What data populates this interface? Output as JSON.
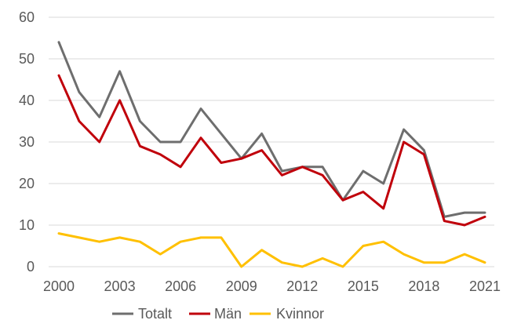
{
  "chart_data": {
    "type": "line",
    "title": "",
    "xlabel": "",
    "ylabel": "",
    "x": [
      2000,
      2001,
      2002,
      2003,
      2004,
      2005,
      2006,
      2007,
      2008,
      2009,
      2010,
      2011,
      2012,
      2013,
      2014,
      2015,
      2016,
      2017,
      2018,
      2019,
      2020,
      2021
    ],
    "x_ticks": [
      2000,
      2003,
      2006,
      2009,
      2012,
      2015,
      2018,
      2021
    ],
    "ylim": [
      0,
      60
    ],
    "y_ticks": [
      0,
      10,
      20,
      30,
      40,
      50,
      60
    ],
    "grid": true,
    "legend": "bottom",
    "series": [
      {
        "name": "Totalt",
        "color": "#6e6e6e",
        "values": [
          54,
          42,
          36,
          47,
          35,
          30,
          30,
          38,
          32,
          26,
          32,
          23,
          24,
          24,
          16,
          23,
          20,
          33,
          28,
          12,
          13,
          13
        ]
      },
      {
        "name": "Män",
        "color": "#c0000b",
        "values": [
          46,
          35,
          30,
          40,
          29,
          27,
          24,
          31,
          25,
          26,
          28,
          22,
          24,
          22,
          16,
          18,
          14,
          30,
          27,
          11,
          10,
          12
        ]
      },
      {
        "name": "Kvinnor",
        "color": "#ffc000",
        "values": [
          8,
          7,
          6,
          7,
          6,
          3,
          6,
          7,
          7,
          0,
          4,
          1,
          0,
          2,
          0,
          5,
          6,
          3,
          1,
          1,
          3,
          1
        ]
      }
    ]
  }
}
